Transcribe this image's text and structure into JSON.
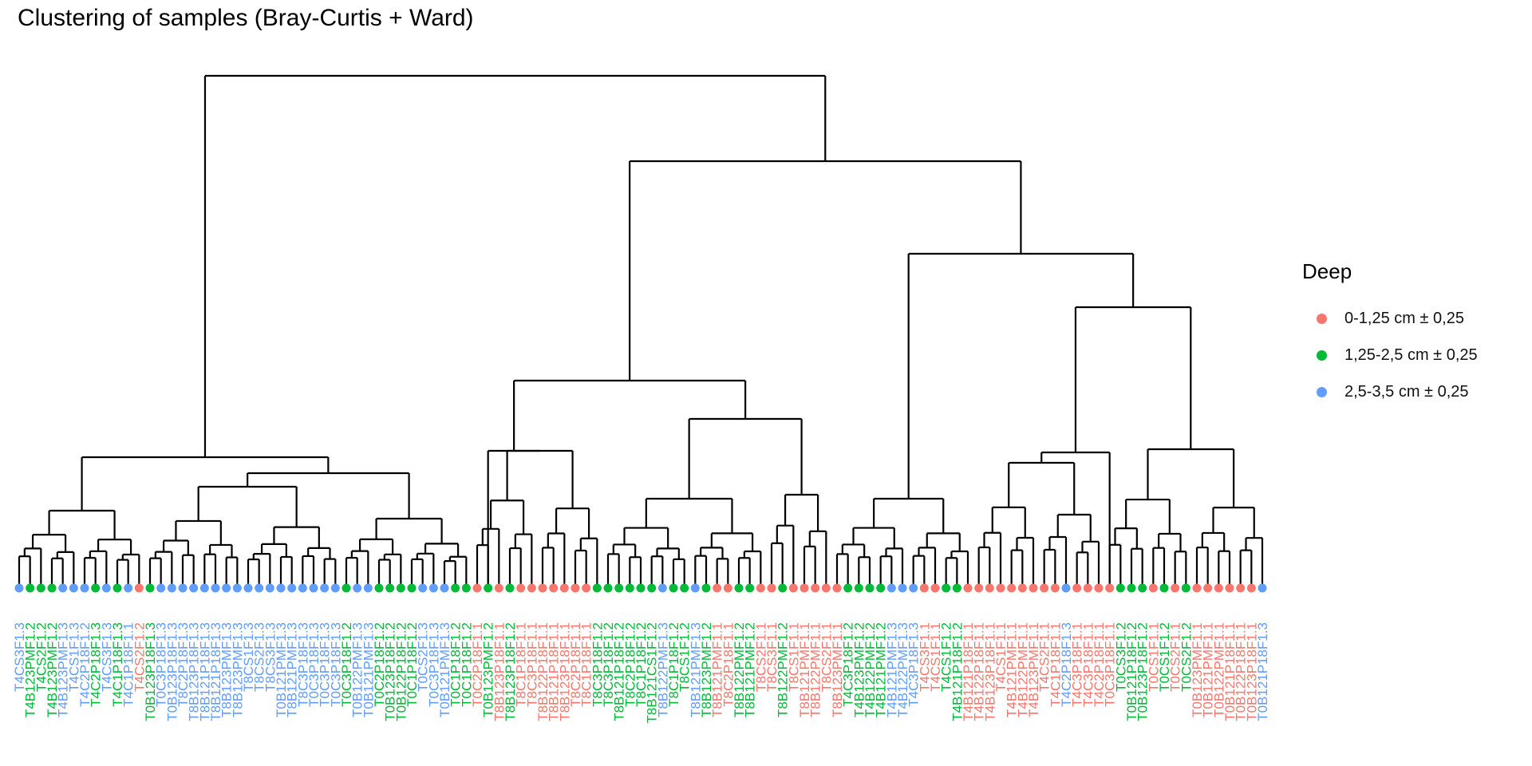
{
  "title": "Clustering of samples (Bray-Curtis + Ward)",
  "legend": {
    "title": "Deep",
    "items": [
      {
        "label": "0-1,25 cm ± 0,25",
        "color": "#F8766D"
      },
      {
        "label": "1,25-2,5 cm ± 0,25",
        "color": "#00BA38"
      },
      {
        "label": "2,5-3,5 cm ± 0,25",
        "color": "#619CFF"
      }
    ]
  },
  "chart_data": {
    "type": "dendrogram",
    "title": "Clustering of samples (Bray-Curtis + Ward)",
    "legend_title": "Deep",
    "groups": [
      "0-1,25 cm ± 0,25",
      "1,25-2,5 cm ± 0,25",
      "2,5-3,5 cm ± 0,25"
    ],
    "colors": [
      "#F8766D",
      "#00BA38",
      "#619CFF"
    ],
    "leaf_groups": [
      2,
      1,
      1,
      1,
      2,
      2,
      2,
      1,
      2,
      1,
      2,
      0,
      1,
      2,
      2,
      2,
      2,
      2,
      2,
      2,
      2,
      2,
      2,
      2,
      2,
      2,
      2,
      2,
      2,
      2,
      1,
      2,
      2,
      1,
      1,
      1,
      1,
      2,
      2,
      2,
      1,
      1,
      0,
      1,
      0,
      1,
      0,
      0,
      0,
      0,
      0,
      0,
      0,
      1,
      1,
      1,
      1,
      1,
      1,
      2,
      1,
      1,
      2,
      1,
      0,
      0,
      1,
      1,
      0,
      0,
      1,
      0,
      0,
      0,
      0,
      0,
      1,
      1,
      1,
      1,
      2,
      2,
      2,
      0,
      0,
      1,
      1,
      0,
      0,
      0,
      0,
      0,
      0,
      0,
      0,
      0,
      2,
      0,
      0,
      0,
      0,
      1,
      1,
      1,
      0,
      1,
      0,
      1,
      0,
      0,
      0,
      0,
      0,
      0,
      2
    ],
    "leaves": [
      "T4CS3F1.3",
      "T4B123PMF1.2",
      "T4CS2F1.2",
      "T4B123PMF1.2",
      "T4B123PMF1.3",
      "T4CS1F1.3",
      "T4C2P18F1.2",
      "T4C2P18F1.3",
      "T4CS3F1.3",
      "T4C1P18F1.3",
      "T4C1P18F1.1",
      "T4CS2F1.2",
      "T0B123P18F1.3",
      "T0C3P18F1.3",
      "T0B123P18F1.3",
      "T8C2P18F1.3",
      "T8B123P18F1.3",
      "T8B121P18F1.3",
      "T8B121P18F1.3",
      "T8B123PMF1.3",
      "T8B123PMF1.3",
      "T8CS1F1.3",
      "T8CS2F1.3",
      "T8CS3F1.3",
      "T0B121PMF1.3",
      "T8B121PMF1.3",
      "T8C3P18F1.3",
      "T0C3P18F1.3",
      "T0C3P18F1.3",
      "T0C3P18F1.3",
      "T0C3P18F1.2",
      "T0B122PMF1.3",
      "T0B121PMF1.3",
      "T0C2P18F1.2",
      "T0B123P18F1.2",
      "T0B122P18F1.2",
      "T0C1P18F1.2",
      "T0CS2F1.3",
      "T0C3P18F1.3",
      "T0B121PMF1.3",
      "T0C1P18F1.2",
      "T0C1P18F1.2",
      "T0C2P18F1.1",
      "T0B123PMF1.2",
      "T8B123P18F1.1",
      "T8B123P18F1.2",
      "T8C1P18F1.1",
      "T8C3P18F1.1",
      "T8B122P18F1.1",
      "T8B121P18F1.1",
      "T8B123P18F1.1",
      "T8C2P18F1.1",
      "T8C1P18F1.1",
      "T8C3P18F1.2",
      "T8C3P18F1.2",
      "T8B121P18F1.2",
      "T8C2P18F1.2",
      "T8C1P18F1.2",
      "T8B121CS1F1.2",
      "T8B122PMF1.3",
      "T8C1P18F1.2",
      "T8CS1F1.2",
      "T8B121PMF1.3",
      "T8B123PMF1.2",
      "T8B121PMF1.1",
      "T8C2P18F1.1",
      "T8B122PMF1.2",
      "T8B121PMF1.2",
      "T8CS2F1.1",
      "T8CS3F1.1",
      "T8B122PMF1.2",
      "T8CS1F1.1",
      "T8B121PMF1.1",
      "T8B122PMF1.1",
      "T8CS2F1.1",
      "T8B123PMF1.1",
      "T4C3P18F1.2",
      "T4B123PMF1.2",
      "T4B122PMF1.2",
      "T4B121PMF1.2",
      "T4B121PMF1.3",
      "T4B122PMF1.3",
      "T4C3P18F1.3",
      "T4CS3F1.1",
      "T4CS1F1.1",
      "T4CS1F1.2",
      "T4B121P18F1.2",
      "T4B121P18F1.1",
      "T4B122P18F1.1",
      "T4B123P18F1.1",
      "T4CS1F1.1",
      "T4B121PMF1.1",
      "T4B122PMF1.1",
      "T4B123PMF1.1",
      "T4CS2F1.1",
      "T4C1P18F1.1",
      "T4C2P18F1.3",
      "T4C3P18F1.1",
      "T4C3P18F1.1",
      "T4C2P18F1.1",
      "T0C3P18F1.1",
      "T0CS3F1.2",
      "T0B121P18F1.2",
      "T0B123P18F1.2",
      "T0CS1F1.1",
      "T0CS1F1.2",
      "T0CS2F1.1",
      "T0CS2F1.2",
      "T0B123PMF1.1",
      "T0B121PMF1.1",
      "T0B122PMF1.1",
      "T0B121P18F1.1",
      "T0B122P18F1.1",
      "T0B123P18F1.1",
      "T0B121P18F1.3"
    ],
    "merge_heights_note": "tree drawn from leaves (height 0) up to root; relative dissimilarity scale, y axis not printed",
    "axis": {
      "x": "none",
      "y": "none"
    }
  }
}
